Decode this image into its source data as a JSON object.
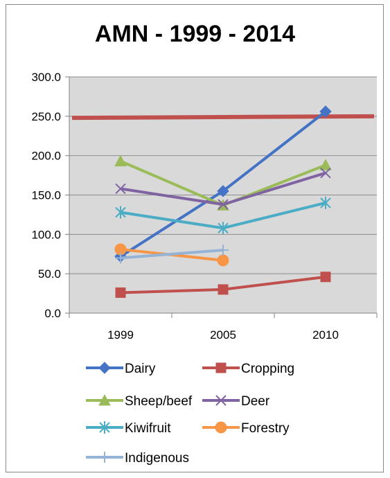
{
  "chart_data": {
    "type": "line",
    "title": "AMN - 1999 - 2014",
    "categories": [
      "1999",
      "2005",
      "2010"
    ],
    "ylim": [
      0,
      300
    ],
    "yticks": [
      "0.0",
      "50.0",
      "100.0",
      "150.0",
      "200.0",
      "250.0",
      "300.0"
    ],
    "grid": true,
    "legend_position": "bottom",
    "series": [
      {
        "name": "Dairy",
        "values": [
          72,
          155,
          256
        ],
        "color": "#4472C4",
        "marker": "diamond"
      },
      {
        "name": "Cropping",
        "values": [
          26,
          30,
          46
        ],
        "color": "#C0504D",
        "marker": "square"
      },
      {
        "name": "Sheep/beef",
        "values": [
          193,
          137,
          188
        ],
        "color": "#9BBB59",
        "marker": "triangle"
      },
      {
        "name": "Deer",
        "values": [
          158,
          138,
          178
        ],
        "color": "#8064A2",
        "marker": "x"
      },
      {
        "name": "Kiwifruit",
        "values": [
          128,
          108,
          140
        ],
        "color": "#4BACC6",
        "marker": "star"
      },
      {
        "name": "Forestry",
        "values": [
          81,
          67,
          null
        ],
        "color": "#F79646",
        "marker": "circle"
      },
      {
        "name": "Indigenous",
        "values": [
          70,
          80,
          null
        ],
        "color": "#95B3D7",
        "marker": "plus"
      }
    ],
    "reference_line": {
      "value": 248,
      "value_end": 250,
      "color": "#C0504D"
    }
  }
}
